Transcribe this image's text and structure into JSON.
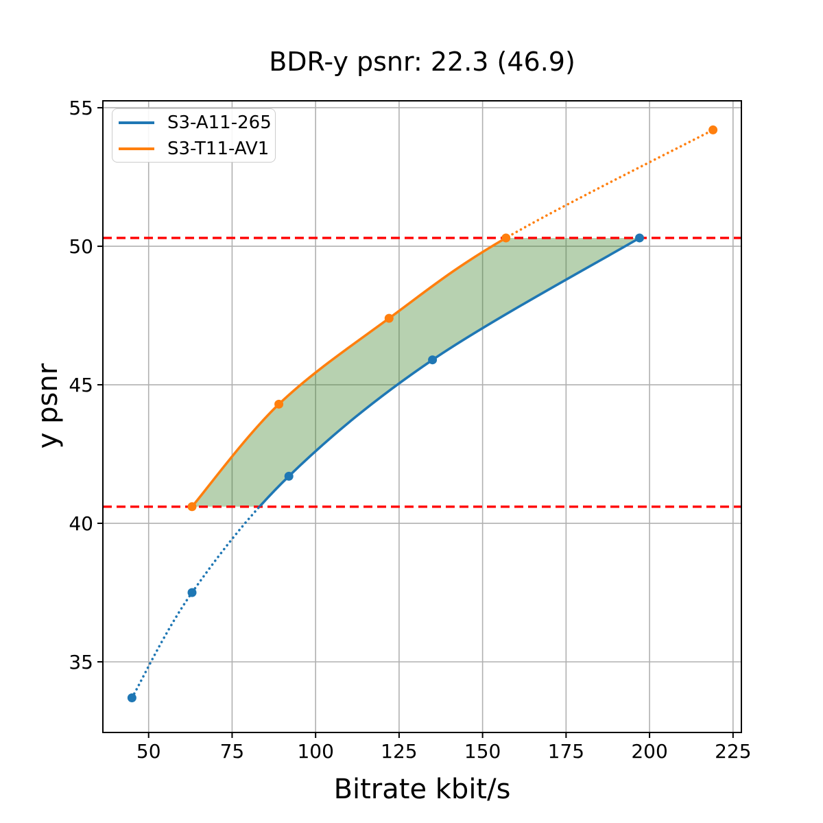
{
  "chart_data": {
    "type": "line",
    "title": "BDR-y psnr: 22.3 (46.9)",
    "bdr_value": "22.3",
    "bdr_mean_psnr": "46.9",
    "xlabel": "Bitrate kbit/s",
    "ylabel": "y psnr",
    "xlim": [
      36.3,
      227.5
    ],
    "ylim": [
      32.45,
      55.25
    ],
    "xticks": [
      50,
      75,
      100,
      125,
      150,
      175,
      200,
      225
    ],
    "yticks": [
      35,
      40,
      45,
      50,
      55
    ],
    "grid": true,
    "grid_color": "#b0b0b0",
    "legend_position": "upper left",
    "series": [
      {
        "name": "S3-A11-265",
        "color": "#1f77b4",
        "marker": "circle",
        "points": [
          [
            45,
            33.7
          ],
          [
            63,
            37.5
          ],
          [
            92,
            41.7
          ],
          [
            135,
            45.9
          ],
          [
            197,
            50.3
          ]
        ]
      },
      {
        "name": "S3-T11-AV1",
        "color": "#ff7f0e",
        "marker": "circle",
        "points": [
          [
            63,
            40.6
          ],
          [
            89,
            44.3
          ],
          [
            122,
            47.4
          ],
          [
            157,
            50.3
          ],
          [
            219,
            54.2
          ]
        ]
      }
    ],
    "overlap_band": {
      "y_low": 40.6,
      "y_high": 50.3,
      "line_color": "#ff0000",
      "line_style": "dashed",
      "note": "curves drawn solid inside band, dotted outside"
    },
    "fill_between": {
      "color": "rgba(60,130,40,0.37)",
      "between": [
        "S3-T11-AV1",
        "S3-A11-265"
      ]
    }
  }
}
